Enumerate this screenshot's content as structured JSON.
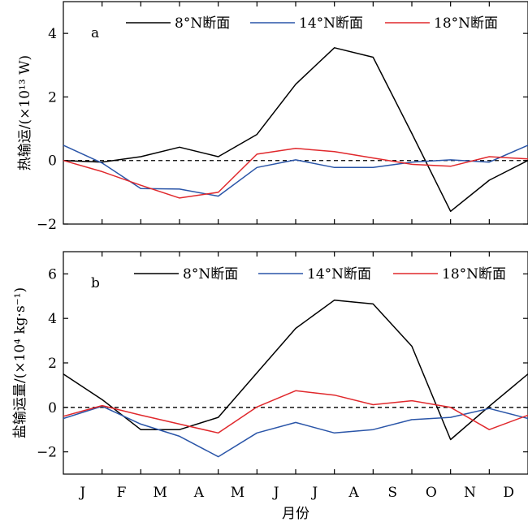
{
  "chart_data": [
    {
      "type": "line",
      "panel_label": "a",
      "ylabel": "热输运/(×10¹³ W)",
      "xlabel": "",
      "categories": [
        "J",
        "F",
        "M",
        "A",
        "M",
        "J",
        "J",
        "A",
        "S",
        "O",
        "N",
        "D"
      ],
      "x": [
        0,
        1,
        2,
        3,
        4,
        5,
        6,
        7,
        8,
        9,
        10,
        11,
        12
      ],
      "ylim": [
        -2,
        5
      ],
      "yticks": [
        -2,
        0,
        2,
        4
      ],
      "yticklabels": [
        "−2",
        "0",
        "2",
        "4"
      ],
      "zero_line": "dashed",
      "legend_position": "top",
      "series": [
        {
          "name": "8°N断面",
          "color": "#000000",
          "values": [
            0,
            -0.05,
            0.12,
            0.42,
            0.12,
            0.82,
            2.4,
            3.55,
            3.25,
            0.85,
            -1.6,
            -0.62,
            0
          ]
        },
        {
          "name": "14°N断面",
          "color": "#2a55a8",
          "values": [
            0.48,
            -0.08,
            -0.88,
            -0.9,
            -1.12,
            -0.22,
            0.02,
            -0.22,
            -0.22,
            -0.05,
            0.02,
            -0.05,
            0.48
          ]
        },
        {
          "name": "18°N断面",
          "color": "#e0282c",
          "values": [
            0,
            -0.35,
            -0.78,
            -1.18,
            -1.0,
            0.2,
            0.38,
            0.28,
            0.08,
            -0.12,
            -0.18,
            0.12,
            0.05
          ]
        }
      ]
    },
    {
      "type": "line",
      "panel_label": "b",
      "ylabel": "盐输运量/(×10⁴ kg·s⁻¹)",
      "xlabel": "月份",
      "categories": [
        "J",
        "F",
        "M",
        "A",
        "M",
        "J",
        "J",
        "A",
        "S",
        "O",
        "N",
        "D"
      ],
      "x": [
        0,
        1,
        2,
        3,
        4,
        5,
        6,
        7,
        8,
        9,
        10,
        11,
        12
      ],
      "ylim": [
        -3,
        7
      ],
      "yticks": [
        -2,
        0,
        2,
        4,
        6
      ],
      "yticklabels": [
        "−2",
        "0",
        "2",
        "4",
        "6"
      ],
      "zero_line": "dashed",
      "legend_position": "top",
      "series": [
        {
          "name": "8°N断面",
          "color": "#000000",
          "values": [
            1.5,
            0.35,
            -1.0,
            -1.0,
            -0.45,
            1.55,
            3.55,
            4.82,
            4.65,
            2.75,
            -1.45,
            0.05,
            1.5
          ]
        },
        {
          "name": "14°N断面",
          "color": "#2a55a8",
          "values": [
            -0.5,
            0.05,
            -0.75,
            -1.3,
            -2.22,
            -1.15,
            -0.68,
            -1.15,
            -1.0,
            -0.55,
            -0.45,
            -0.05,
            -0.5
          ]
        },
        {
          "name": "18°N断面",
          "color": "#e0282c",
          "values": [
            -0.4,
            0.08,
            -0.35,
            -0.75,
            -1.15,
            0.02,
            0.75,
            0.55,
            0.12,
            0.3,
            0.0,
            -1.0,
            -0.35
          ]
        }
      ]
    }
  ]
}
